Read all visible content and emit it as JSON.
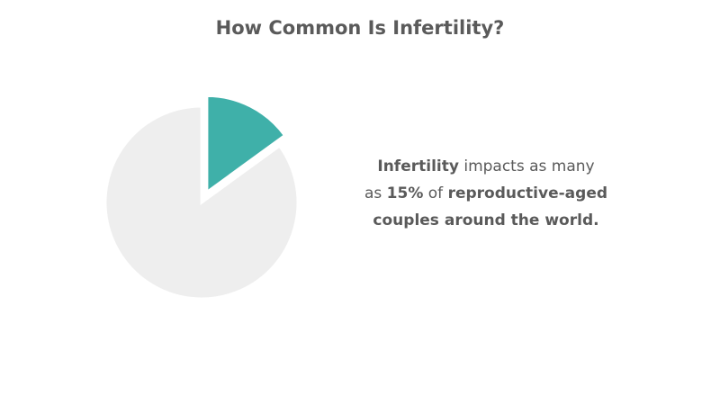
{
  "chart_data": {
    "type": "pie",
    "title": "How Common Is Infertility?",
    "values": [
      15,
      85
    ],
    "colors": [
      "#3fb0a9",
      "#eeeeee"
    ],
    "exploded": [
      true,
      false
    ],
    "annotation": [
      [
        {
          "text": "Infertility",
          "bold": true
        },
        {
          "text": " impacts as many",
          "bold": false
        }
      ],
      [
        {
          "text": "as ",
          "bold": false
        },
        {
          "text": "15%",
          "bold": true
        },
        {
          "text": " of ",
          "bold": false
        },
        {
          "text": "reproductive-aged",
          "bold": true
        }
      ],
      [
        {
          "text": "couples around the world.",
          "bold": true
        }
      ]
    ]
  }
}
